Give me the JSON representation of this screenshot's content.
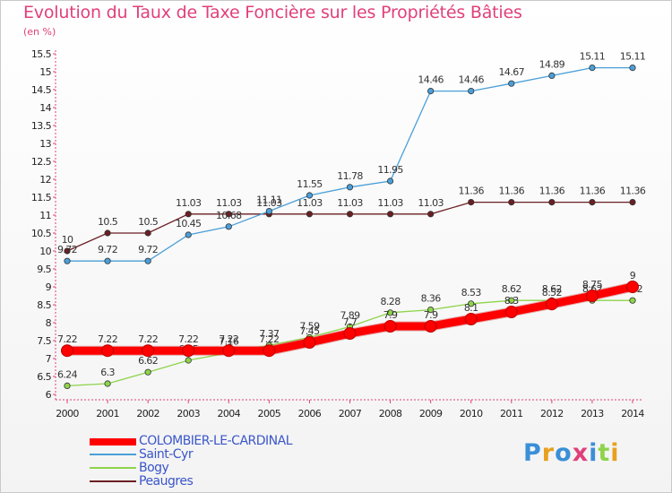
{
  "header": {
    "title": "Evolution du Taux de Taxe Foncière sur les Propriétés Bâties",
    "subtitle": "(en %)"
  },
  "logo": {
    "text": "Proxiti"
  },
  "chart_data": {
    "type": "line",
    "title": "Evolution du Taux de Taxe Foncière sur les Propriétés Bâties",
    "ylabel": "(en %)",
    "xlabel": "",
    "x": [
      "2000",
      "2001",
      "2002",
      "2003",
      "2004",
      "2005",
      "2006",
      "2007",
      "2008",
      "2009",
      "2010",
      "2011",
      "2012",
      "2013",
      "2014"
    ],
    "ylim": [
      6,
      15.5
    ],
    "yticks": [
      "6",
      "6.5",
      "7",
      "7.5",
      "8",
      "8.5",
      "9",
      "9.5",
      "10",
      "10.5",
      "11",
      "11.5",
      "12",
      "12.5",
      "13",
      "13.5",
      "14",
      "14.5",
      "15",
      "15.5"
    ],
    "grid": false,
    "legend_position": "bottom-left",
    "series": [
      {
        "name": "COLOMBIER-LE-CARDINAL",
        "color": "#ff0000",
        "values": [
          7.22,
          7.22,
          7.22,
          7.22,
          7.22,
          7.22,
          7.45,
          7.7,
          7.9,
          7.9,
          8.1,
          8.3,
          8.52,
          8.75,
          9
        ],
        "labels": [
          "7.22",
          "7.22",
          "7.22",
          "7.22",
          "7.22",
          "7.22",
          "7.45",
          "7.7",
          "7.9",
          "7.9",
          "8.1",
          "8.3",
          "8.52",
          "8.75",
          "9"
        ]
      },
      {
        "name": "Saint-Cyr",
        "color": "#4a9fd8",
        "values": [
          9.72,
          9.72,
          9.72,
          10.45,
          10.68,
          11.11,
          11.55,
          11.78,
          11.95,
          14.46,
          14.46,
          14.67,
          14.89,
          15.11,
          15.11
        ],
        "labels": [
          "9.72",
          "9.72",
          "9.72",
          "10.45",
          "10.68",
          "11.11",
          "11.55",
          "11.78",
          "11.95",
          "14.46",
          "14.46",
          "14.67",
          "14.89",
          "15.11",
          "15.11"
        ]
      },
      {
        "name": "Bogy",
        "color": "#8ed44a",
        "values": [
          6.24,
          6.3,
          6.62,
          6.95,
          7.16,
          7.37,
          7.59,
          7.89,
          8.28,
          8.36,
          8.53,
          8.62,
          8.62,
          8.62,
          8.62
        ],
        "labels": [
          "6.24",
          "6.3",
          "6.62",
          "6.95",
          "7.16",
          "7.37",
          "7.59",
          "7.89",
          "8.28",
          "8.36",
          "8.53",
          "8.62",
          "8.62",
          "8.62",
          "8.62"
        ]
      },
      {
        "name": "Peaugres",
        "color": "#6a1f24",
        "values": [
          10,
          10.5,
          10.5,
          11.03,
          11.03,
          11.03,
          11.03,
          11.03,
          11.03,
          11.03,
          11.36,
          11.36,
          11.36,
          11.36,
          11.36
        ],
        "labels": [
          "10",
          "10.5",
          "10.5",
          "11.03",
          "11.03",
          "11.03",
          "11.03",
          "11.03",
          "11.03",
          "11.03",
          "11.36",
          "11.36",
          "11.36",
          "11.36",
          "11.36"
        ]
      }
    ]
  },
  "legend": {
    "items": [
      {
        "label": "COLOMBIER-LE-CARDINAL",
        "color": "#ff0000"
      },
      {
        "label": "Saint-Cyr",
        "color": "#4a9fd8"
      },
      {
        "label": "Bogy",
        "color": "#8ed44a"
      },
      {
        "label": "Peaugres",
        "color": "#6a1f24"
      }
    ]
  }
}
